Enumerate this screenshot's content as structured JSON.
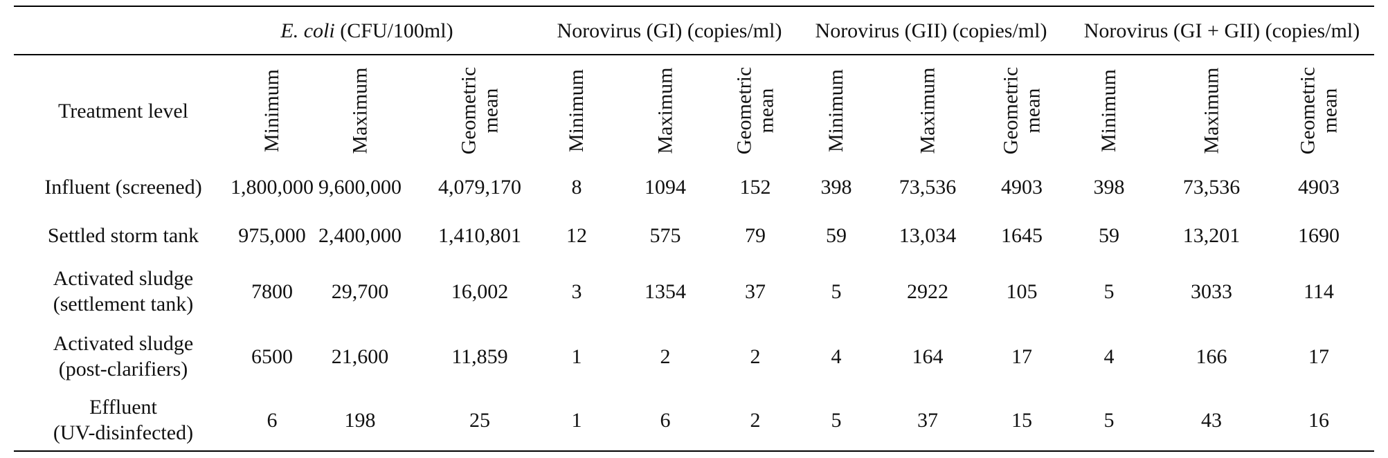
{
  "table": {
    "group_headers": {
      "ecoli": {
        "organism": "E. coli",
        "unit": " (CFU/100ml)"
      },
      "gi": "Norovirus (GI) (copies/ml)",
      "gii": "Norovirus (GII) (copies/ml)",
      "gigii": "Norovirus (GI + GII) (copies/ml)"
    },
    "row_header_label": "Treatment level",
    "sub_headers": {
      "min": "Minimum",
      "max": "Maximum",
      "geo_1": "Geometric",
      "geo_2": "mean"
    },
    "rows": [
      {
        "level_1": "Influent (screened)",
        "level_2": "",
        "values": [
          "1,800,000",
          "9,600,000",
          "4,079,170",
          "8",
          "1094",
          "152",
          "398",
          "73,536",
          "4903",
          "398",
          "73,536",
          "4903"
        ]
      },
      {
        "level_1": "Settled storm tank",
        "level_2": "",
        "values": [
          "975,000",
          "2,400,000",
          "1,410,801",
          "12",
          "575",
          "79",
          "59",
          "13,034",
          "1645",
          "59",
          "13,201",
          "1690"
        ]
      },
      {
        "level_1": "Activated sludge",
        "level_2": "(settlement tank)",
        "values": [
          "7800",
          "29,700",
          "16,002",
          "3",
          "1354",
          "37",
          "5",
          "2922",
          "105",
          "5",
          "3033",
          "114"
        ]
      },
      {
        "level_1": "Activated sludge",
        "level_2": "(post-clarifiers)",
        "values": [
          "6500",
          "21,600",
          "11,859",
          "1",
          "2",
          "2",
          "4",
          "164",
          "17",
          "4",
          "166",
          "17"
        ]
      },
      {
        "level_1": "Effluent",
        "level_2": "(UV-disinfected)",
        "values": [
          "6",
          "198",
          "25",
          "1",
          "6",
          "2",
          "5",
          "37",
          "15",
          "5",
          "43",
          "16"
        ]
      }
    ]
  }
}
